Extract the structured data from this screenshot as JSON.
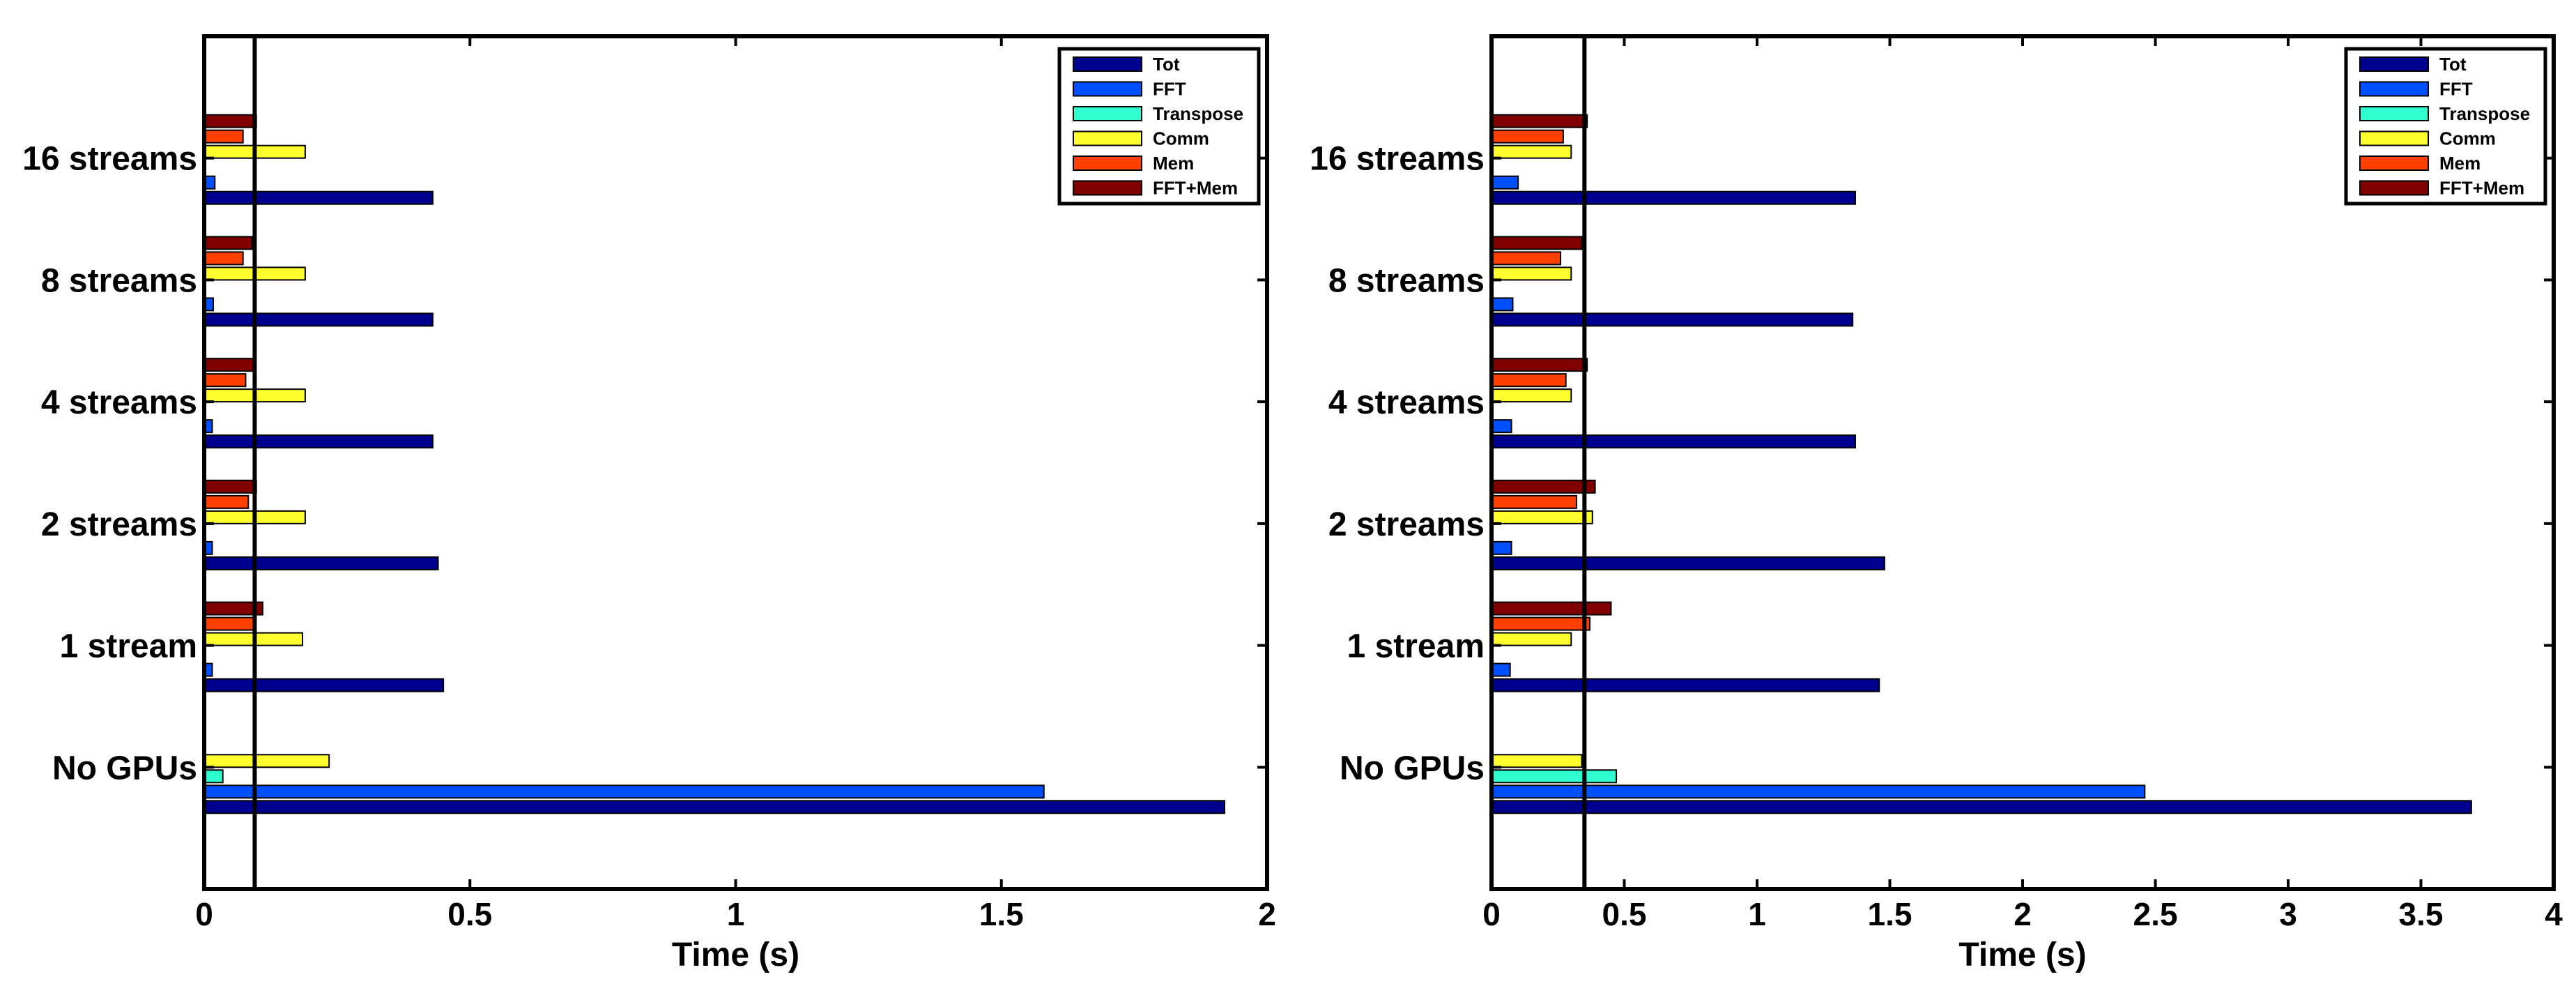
{
  "legend": {
    "entries": [
      {
        "label": "Tot",
        "color": "#00008F"
      },
      {
        "label": "FFT",
        "color": "#0050FF"
      },
      {
        "label": "Transpose",
        "color": "#30FFD0"
      },
      {
        "label": "Comm",
        "color": "#FFFF30"
      },
      {
        "label": "Mem",
        "color": "#FF4000"
      },
      {
        "label": "FFT+Mem",
        "color": "#800000"
      }
    ]
  },
  "chart_data": [
    {
      "type": "bar",
      "orientation": "horizontal",
      "categories": [
        "No GPUs",
        "1 stream",
        "2 streams",
        "4 streams",
        "8 streams",
        "16 streams"
      ],
      "series": [
        {
          "name": "Tot",
          "color": "#00008F",
          "values": [
            1.92,
            0.45,
            0.44,
            0.43,
            0.43,
            0.43
          ]
        },
        {
          "name": "FFT",
          "color": "#0050FF",
          "values": [
            1.58,
            0.015,
            0.015,
            0.015,
            0.017,
            0.02
          ]
        },
        {
          "name": "Transpose",
          "color": "#30FFD0",
          "values": [
            0.035,
            0,
            0,
            0,
            0,
            0
          ]
        },
        {
          "name": "Comm",
          "color": "#FFFF30",
          "values": [
            0.235,
            0.185,
            0.19,
            0.19,
            0.19,
            0.19
          ]
        },
        {
          "name": "Mem",
          "color": "#FF4000",
          "values": [
            0,
            0.095,
            0.083,
            0.078,
            0.073,
            0.073
          ]
        },
        {
          "name": "FFT+Mem",
          "color": "#800000",
          "values": [
            0,
            0.11,
            0.098,
            0.093,
            0.09,
            0.098
          ]
        }
      ],
      "reference_line": 0.095,
      "xlabel": "Time (s)",
      "xlim": [
        0,
        2
      ],
      "xticks": [
        0,
        0.5,
        1,
        1.5,
        2
      ],
      "xtick_labels": [
        "0",
        "0.5",
        "1",
        "1.5",
        "2"
      ],
      "legend_position": "top-right"
    },
    {
      "type": "bar",
      "orientation": "horizontal",
      "categories": [
        "No GPUs",
        "1 stream",
        "2 streams",
        "4 streams",
        "8 streams",
        "16 streams"
      ],
      "series": [
        {
          "name": "Tot",
          "color": "#00008F",
          "values": [
            3.69,
            1.46,
            1.48,
            1.37,
            1.36,
            1.37
          ]
        },
        {
          "name": "FFT",
          "color": "#0050FF",
          "values": [
            2.46,
            0.07,
            0.075,
            0.075,
            0.08,
            0.1
          ]
        },
        {
          "name": "Transpose",
          "color": "#30FFD0",
          "values": [
            0.47,
            0,
            0,
            0,
            0,
            0
          ]
        },
        {
          "name": "Comm",
          "color": "#FFFF30",
          "values": [
            0.34,
            0.3,
            0.38,
            0.3,
            0.3,
            0.3
          ]
        },
        {
          "name": "Mem",
          "color": "#FF4000",
          "values": [
            0,
            0.37,
            0.32,
            0.28,
            0.26,
            0.27
          ]
        },
        {
          "name": "FFT+Mem",
          "color": "#800000",
          "values": [
            0,
            0.45,
            0.39,
            0.36,
            0.34,
            0.36
          ]
        }
      ],
      "reference_line": 0.35,
      "xlabel": "Time (s)",
      "xlim": [
        0,
        4
      ],
      "xticks": [
        0,
        0.5,
        1,
        1.5,
        2,
        2.5,
        3,
        3.5,
        4
      ],
      "xtick_labels": [
        "0",
        "0.5",
        "1",
        "1.5",
        "2",
        "2.5",
        "3",
        "3.5",
        "4"
      ],
      "legend_position": "top-right"
    }
  ]
}
